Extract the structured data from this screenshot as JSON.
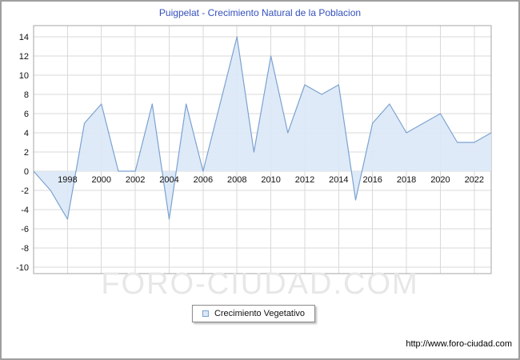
{
  "page": {
    "title": "Puigpelat - Crecimiento Natural de la Poblacion",
    "watermark": "FORO-CIUDAD.COM",
    "footer_url": "http://www.foro-ciudad.com"
  },
  "legend": {
    "label": "Crecimiento Vegetativo",
    "swatch_fill": "#dce8f7",
    "swatch_border": "#7ba2d0",
    "position": "bottom"
  },
  "chart_data": {
    "type": "area",
    "title": "Puigpelat - Crecimiento Natural de la Poblacion",
    "series_name": "Crecimiento Vegetativo",
    "x": [
      1996,
      1997,
      1998,
      1999,
      2000,
      2001,
      2002,
      2003,
      2004,
      2005,
      2006,
      2007,
      2008,
      2009,
      2010,
      2011,
      2012,
      2013,
      2014,
      2015,
      2016,
      2017,
      2018,
      2019,
      2020,
      2021,
      2022,
      2023
    ],
    "values": [
      0,
      -2,
      -5,
      5,
      7,
      0,
      0,
      7,
      -5,
      7,
      0,
      7,
      14,
      2,
      12,
      4,
      9,
      8,
      9,
      -3,
      5,
      7,
      4,
      5,
      6,
      3,
      3,
      4
    ],
    "ylim": [
      -10,
      14
    ],
    "yticks": [
      14,
      12,
      10,
      8,
      6,
      4,
      2,
      0,
      -2,
      -4,
      -6,
      -8,
      -10
    ],
    "xticks": [
      1998,
      2000,
      2002,
      2004,
      2006,
      2008,
      2010,
      2012,
      2014,
      2016,
      2018,
      2020,
      2022
    ],
    "grid": true,
    "baseline": 0,
    "legend_position": "bottom",
    "line_color": "#7ba2d0",
    "fill_color": "#dce8f7",
    "grid_color": "#d9d9d9",
    "plot_border_color": "#a6a6a6",
    "axis_label_color": "#111111",
    "title_color": "#3450bd"
  }
}
